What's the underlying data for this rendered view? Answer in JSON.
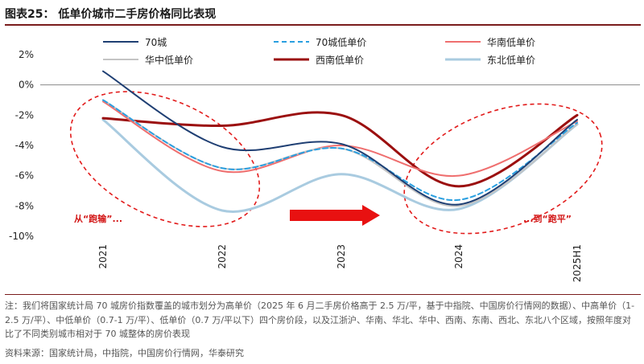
{
  "title": "图表25：  低单价城市二手房价格同比表现",
  "chart_data": {
    "type": "line",
    "x": [
      "2021",
      "2022",
      "2023",
      "2024",
      "2025H1"
    ],
    "ylim": [
      -10,
      2
    ],
    "yticks": [
      "2%",
      "0%",
      "-2%",
      "-4%",
      "-6%",
      "-8%",
      "-10%"
    ],
    "series": [
      {
        "name": "70城",
        "values": [
          0.9,
          -4.1,
          -3.9,
          -7.9,
          -2.3
        ],
        "color": "#1f3f73",
        "dash": false,
        "width": 2
      },
      {
        "name": "70城低单价",
        "values": [
          -1.0,
          -5.5,
          -4.2,
          -7.6,
          -2.5
        ],
        "color": "#2a9fe0",
        "dash": true,
        "width": 2
      },
      {
        "name": "华南低单价",
        "values": [
          -1.1,
          -5.7,
          -4.0,
          -6.0,
          -2.4
        ],
        "color": "#ef6f6f",
        "dash": false,
        "width": 2
      },
      {
        "name": "华中低单价",
        "values": [
          -1.0,
          -5.5,
          -4.2,
          -8.0,
          -2.6
        ],
        "color": "#c4c4c4",
        "dash": false,
        "width": 2
      },
      {
        "name": "西南低单价",
        "values": [
          -2.2,
          -2.7,
          -2.0,
          -6.7,
          -2.0
        ],
        "color": "#9b0f0f",
        "dash": false,
        "width": 3
      },
      {
        "name": "东北低单价",
        "values": [
          -2.3,
          -8.3,
          -5.9,
          -8.2,
          -2.6
        ],
        "color": "#a9cbe0",
        "dash": false,
        "width": 3
      }
    ],
    "annotations": [
      "从“跑输”...",
      "...到“跑平”"
    ]
  },
  "note": "注：我们将国家统计局 70 城房价指数覆盖的城市划分为高单价（2025 年 6 月二手房价格高于 2.5 万/平，基于中指院、中国房价行情网的数据）、中高单价（1-2.5 万/平）、中低单价（0.7-1 万/平）、低单价（0.7 万/平以下）四个房价段，以及江浙沪、华南、华北、华中、西南、东南、西北、东北八个区域，按照年度对比了不同类别城市相对于 70 城整体的房价表现",
  "source": "资料来源：国家统计局，中指院，中国房价行情网，华泰研究"
}
